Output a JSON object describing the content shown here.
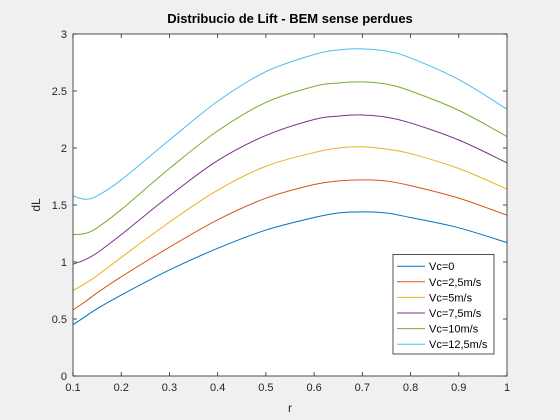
{
  "chart_data": {
    "type": "line",
    "title": "Distribucio de Lift - BEM sense perdues",
    "xlabel": "r",
    "ylabel": "dL",
    "xlim": [
      0.1,
      1.0
    ],
    "ylim": [
      0,
      3
    ],
    "xticks": [
      "0.1",
      "0.2",
      "0.3",
      "0.4",
      "0.5",
      "0.6",
      "0.7",
      "0.8",
      "0.9",
      "1"
    ],
    "yticks": [
      "0",
      "0.5",
      "1",
      "1.5",
      "2",
      "2.5",
      "3"
    ],
    "grid": false,
    "legend_position": "bottom-right",
    "x": [
      0.1,
      0.125,
      0.15,
      0.2,
      0.3,
      0.4,
      0.5,
      0.6,
      0.65,
      0.7,
      0.75,
      0.8,
      0.9,
      1.0
    ],
    "series": [
      {
        "name": "Vc=0",
        "color": "#0072BD",
        "values": [
          0.45,
          0.52,
          0.59,
          0.71,
          0.93,
          1.12,
          1.28,
          1.39,
          1.43,
          1.44,
          1.43,
          1.39,
          1.3,
          1.17
        ]
      },
      {
        "name": "Vc=2,5m/s",
        "color": "#D95319",
        "values": [
          0.58,
          0.65,
          0.73,
          0.87,
          1.13,
          1.37,
          1.56,
          1.68,
          1.71,
          1.72,
          1.71,
          1.67,
          1.56,
          1.41
        ]
      },
      {
        "name": "Vc=5m/s",
        "color": "#EDB120",
        "values": [
          0.75,
          0.81,
          0.88,
          1.04,
          1.35,
          1.63,
          1.84,
          1.96,
          2.0,
          2.01,
          1.99,
          1.95,
          1.82,
          1.64
        ]
      },
      {
        "name": "Vc=7,5m/s",
        "color": "#7E2F8E",
        "values": [
          0.98,
          1.02,
          1.08,
          1.24,
          1.58,
          1.89,
          2.11,
          2.25,
          2.28,
          2.29,
          2.27,
          2.22,
          2.07,
          1.87
        ]
      },
      {
        "name": "Vc=10m/s",
        "color": "#77AC30",
        "values": [
          1.24,
          1.25,
          1.3,
          1.46,
          1.82,
          2.15,
          2.4,
          2.54,
          2.57,
          2.58,
          2.56,
          2.5,
          2.33,
          2.1
        ]
      },
      {
        "name": "Vc=12,5m/s",
        "color": "#4DBEEE",
        "values": [
          1.58,
          1.55,
          1.58,
          1.72,
          2.07,
          2.41,
          2.67,
          2.82,
          2.86,
          2.87,
          2.85,
          2.79,
          2.6,
          2.34
        ]
      }
    ]
  }
}
